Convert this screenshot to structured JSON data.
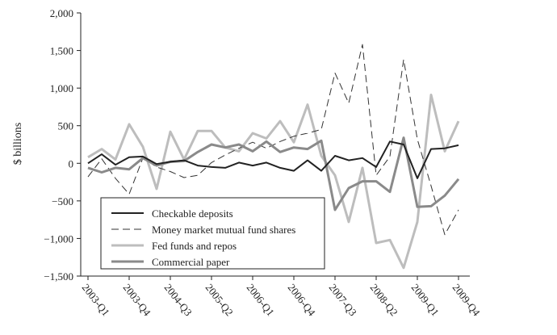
{
  "chart_data": {
    "type": "line",
    "ylabel": "$ billions",
    "ylim": [
      -1500,
      2000
    ],
    "yticks": [
      2000,
      1500,
      1000,
      500,
      0,
      -500,
      -1000,
      -1500
    ],
    "ytick_labels": [
      "2,000",
      "1,500",
      "1,000",
      "500",
      "0",
      "−500",
      "−1,000",
      "−1,500"
    ],
    "xtick_labels": [
      "2003-Q1",
      "2003-Q4",
      "2004-Q3",
      "2005-Q2",
      "2006-Q1",
      "2006-Q4",
      "2007-Q3",
      "2008-Q2",
      "2009-Q1",
      "2009-Q4"
    ],
    "x": [
      "2003-Q1",
      "2003-Q2",
      "2003-Q3",
      "2003-Q4",
      "2004-Q1",
      "2004-Q2",
      "2004-Q3",
      "2004-Q4",
      "2005-Q1",
      "2005-Q2",
      "2005-Q3",
      "2005-Q4",
      "2006-Q1",
      "2006-Q2",
      "2006-Q3",
      "2006-Q4",
      "2007-Q1",
      "2007-Q2",
      "2007-Q3",
      "2007-Q4",
      "2008-Q1",
      "2008-Q2",
      "2008-Q3",
      "2008-Q4",
      "2009-Q1",
      "2009-Q2",
      "2009-Q3",
      "2009-Q4"
    ],
    "grid": false,
    "legend_position": "bottom-left",
    "series": [
      {
        "name": "Checkable deposits",
        "color": "#222222",
        "dash": "solid",
        "values": [
          0,
          120,
          -20,
          80,
          90,
          -10,
          20,
          40,
          -30,
          -50,
          -60,
          10,
          -30,
          10,
          -60,
          -100,
          40,
          -100,
          100,
          40,
          70,
          -50,
          290,
          250,
          -200,
          190,
          200,
          240
        ]
      },
      {
        "name": "Money market mutual fund shares",
        "color": "#333333",
        "dash": "dashed",
        "values": [
          -180,
          60,
          -200,
          -410,
          70,
          -50,
          -110,
          -190,
          -160,
          10,
          110,
          200,
          280,
          200,
          290,
          360,
          400,
          450,
          1200,
          800,
          1580,
          -160,
          90,
          1380,
          320,
          -300,
          -950,
          -620
        ]
      },
      {
        "name": "Fed funds and repos",
        "color": "#bdbdbd",
        "dash": "solid",
        "values": [
          80,
          190,
          50,
          520,
          220,
          -340,
          420,
          50,
          430,
          430,
          210,
          160,
          400,
          330,
          560,
          280,
          780,
          100,
          -160,
          -780,
          -60,
          -1060,
          -1020,
          -1390,
          -780,
          910,
          160,
          560
        ]
      },
      {
        "name": "Commercial paper",
        "color": "#8a8a8a",
        "dash": "solid",
        "values": [
          -60,
          -120,
          -60,
          -80,
          70,
          -30,
          20,
          30,
          150,
          250,
          210,
          250,
          160,
          290,
          150,
          210,
          190,
          300,
          -620,
          -330,
          -240,
          -240,
          -380,
          340,
          -580,
          -570,
          -430,
          -210
        ]
      }
    ]
  }
}
